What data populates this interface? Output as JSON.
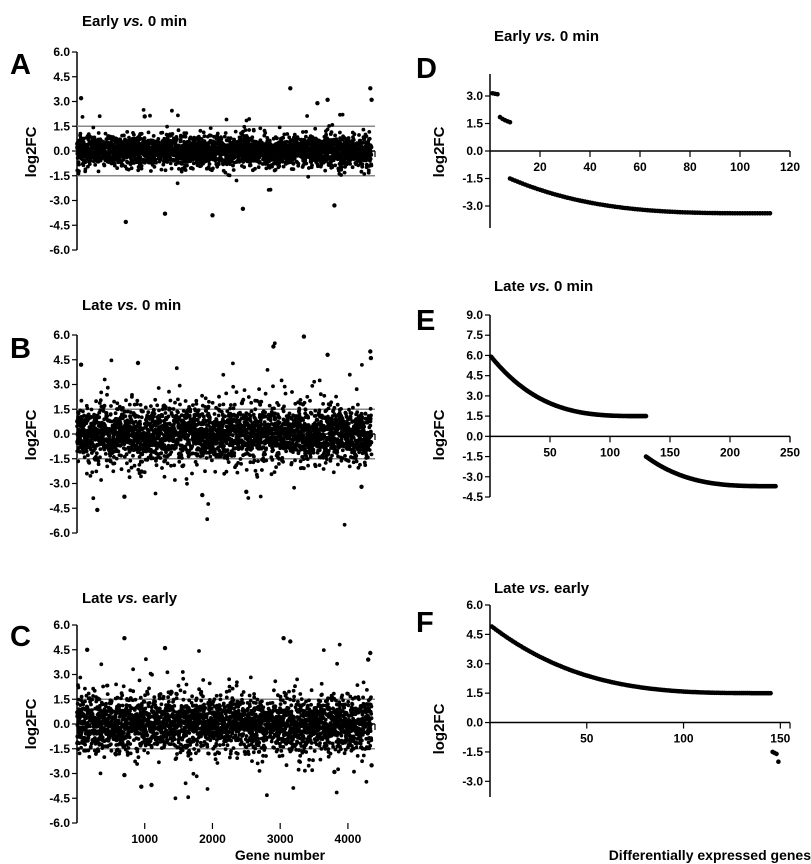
{
  "figure": {
    "shared_xlabel_left": "Gene number",
    "shared_xlabel_right": "Differentially expressed genes"
  },
  "chart_data": [
    {
      "panel": "A",
      "type": "scatter",
      "title_parts": [
        "Early ",
        "vs.",
        " 0 min"
      ],
      "ylabel": "log2FC",
      "xlabel": "",
      "xlim": [
        0,
        4400
      ],
      "ylim": [
        -6,
        6
      ],
      "yticks": [
        "6.0",
        "4.5",
        "3.0",
        "1.5",
        "0.0",
        "-1.5",
        "-3.0",
        "-4.5",
        "-6.0"
      ],
      "xticks": [],
      "reference_lines": [
        1.5,
        -1.5
      ],
      "series": [
        {
          "n_genes": 4350,
          "core_sd": 0.45,
          "notable_points": [
            [
              60,
              3.2
            ],
            [
              1000,
              2.1
            ],
            [
              3150,
              3.8
            ],
            [
              3550,
              2.9
            ],
            [
              3700,
              3.1
            ],
            [
              4330,
              3.8
            ],
            [
              4350,
              3.1
            ],
            [
              720,
              -4.3
            ],
            [
              1300,
              -3.8
            ],
            [
              2000,
              -3.9
            ],
            [
              2450,
              -3.5
            ],
            [
              3800,
              -3.3
            ]
          ]
        }
      ]
    },
    {
      "panel": "B",
      "type": "scatter",
      "title_parts": [
        "Late ",
        "vs.",
        " 0 min"
      ],
      "ylabel": "log2FC",
      "xlabel": "",
      "xlim": [
        0,
        4400
      ],
      "ylim": [
        -6,
        6
      ],
      "yticks": [
        "6.0",
        "4.5",
        "3.0",
        "1.5",
        "0.0",
        "-1.5",
        "-3.0",
        "-4.5",
        "-6.0"
      ],
      "xticks": [],
      "reference_lines": [
        1.5,
        -1.5
      ],
      "series": [
        {
          "n_genes": 4350,
          "core_sd": 0.85,
          "notable_points": [
            [
              60,
              4.2
            ],
            [
              900,
              4.3
            ],
            [
              2900,
              5.3
            ],
            [
              3350,
              5.9
            ],
            [
              3700,
              4.8
            ],
            [
              4330,
              5.0
            ],
            [
              4340,
              4.6
            ],
            [
              300,
              -4.6
            ],
            [
              700,
              -3.8
            ],
            [
              1850,
              -3.7
            ],
            [
              2500,
              -3.5
            ],
            [
              4200,
              -3.2
            ]
          ]
        }
      ]
    },
    {
      "panel": "C",
      "type": "scatter",
      "title_parts": [
        "Late ",
        "vs.",
        " early"
      ],
      "ylabel": "log2FC",
      "xlabel": "Gene number",
      "xlim": [
        0,
        4400
      ],
      "ylim": [
        -6,
        6
      ],
      "yticks": [
        "6.0",
        "4.5",
        "3.0",
        "1.5",
        "0.0",
        "-1.5",
        "-3.0",
        "-4.5",
        "-6.0"
      ],
      "xticks": [
        1000,
        2000,
        3000,
        4000
      ],
      "reference_lines": [
        1.5,
        -1.5
      ],
      "series": [
        {
          "n_genes": 4350,
          "core_sd": 0.85,
          "notable_points": [
            [
              150,
              4.5
            ],
            [
              700,
              5.2
            ],
            [
              1300,
              4.6
            ],
            [
              3050,
              5.2
            ],
            [
              3150,
              5.0
            ],
            [
              4330,
              4.3
            ],
            [
              4300,
              3.9
            ],
            [
              700,
              -3.1
            ],
            [
              950,
              -3.8
            ],
            [
              1100,
              -3.7
            ],
            [
              3800,
              -2.9
            ],
            [
              4350,
              -2.5
            ]
          ]
        }
      ]
    },
    {
      "panel": "D",
      "type": "scatter",
      "title_parts": [
        "Early ",
        "vs.",
        " 0 min"
      ],
      "ylabel": "log2FC",
      "xlabel": "",
      "xlim": [
        0,
        120
      ],
      "ylim": [
        -4.2,
        4.2
      ],
      "yticks": [
        "3.0",
        "1.5",
        "0.0",
        "-1.5",
        "-3.0"
      ],
      "xticks": [
        20,
        40,
        60,
        80,
        100,
        120
      ],
      "up_regulated": [
        [
          1,
          3.15
        ],
        [
          2,
          3.12
        ],
        [
          3,
          3.1
        ],
        [
          4,
          1.85
        ],
        [
          5,
          1.75
        ],
        [
          6,
          1.68
        ],
        [
          7,
          1.62
        ],
        [
          8,
          1.57
        ]
      ],
      "down_regulated": {
        "rank_range": [
          8,
          112
        ],
        "log2fc_range": [
          -1.5,
          -3.4
        ]
      }
    },
    {
      "panel": "E",
      "type": "scatter",
      "title_parts": [
        "Late ",
        "vs.",
        " 0 min"
      ],
      "ylabel": "log2FC",
      "xlabel": "",
      "xlim": [
        0,
        250
      ],
      "ylim": [
        -4.5,
        9.0
      ],
      "yticks": [
        "9.0",
        "7.5",
        "6.0",
        "4.5",
        "3.0",
        "1.5",
        "0.0",
        "-1.5",
        "-3.0",
        "-4.5"
      ],
      "xticks": [
        50,
        100,
        150,
        200,
        250
      ],
      "up_regulated": {
        "rank_range": [
          1,
          130
        ],
        "log2fc_range": [
          5.9,
          1.5
        ]
      },
      "down_regulated": {
        "rank_range": [
          130,
          238
        ],
        "log2fc_range": [
          -1.5,
          -3.7
        ]
      }
    },
    {
      "panel": "F",
      "type": "scatter",
      "title_parts": [
        "Late ",
        "vs.",
        " early"
      ],
      "ylabel": "log2FC",
      "xlabel": "Differentially expressed genes",
      "xlim": [
        0,
        155
      ],
      "ylim": [
        -3.8,
        6.0
      ],
      "yticks": [
        "6.0",
        "4.5",
        "3.0",
        "1.5",
        "0.0",
        "-1.5",
        "-3.0"
      ],
      "xticks": [
        50,
        100,
        150
      ],
      "up_regulated": {
        "rank_range": [
          1,
          145
        ],
        "log2fc_range": [
          4.9,
          1.5
        ]
      },
      "down_regulated": [
        [
          146,
          -1.5
        ],
        [
          147,
          -1.55
        ],
        [
          148,
          -1.6
        ],
        [
          149,
          -2.0
        ]
      ]
    }
  ]
}
